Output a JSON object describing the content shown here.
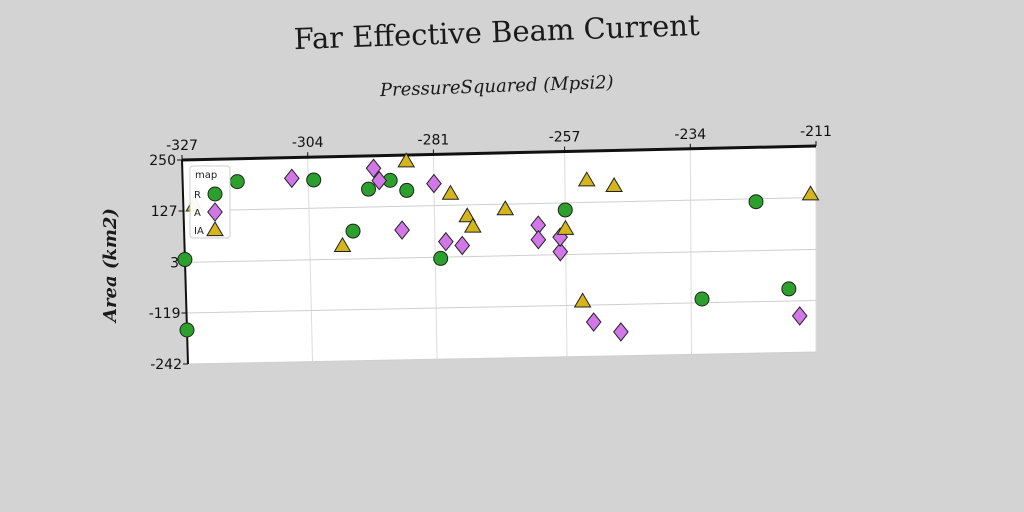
{
  "chart_data": {
    "type": "scatter",
    "title": "Far Effective Beam Current",
    "xlabel": "PressureSquared (Mpsi2)",
    "ylabel": "Area (km2)",
    "xlim": [
      -327,
      -211
    ],
    "ylim": [
      -242,
      250
    ],
    "x_ticks": [
      "-327",
      "-304",
      "-281",
      "-257",
      "-234",
      "-211"
    ],
    "y_ticks": [
      "250",
      "127",
      "3",
      "-119",
      "-242"
    ],
    "x_axis_position": "top",
    "grid": true,
    "legend": {
      "title": "map",
      "placement": "upper-left"
    },
    "series": [
      {
        "name": "R",
        "marker": "circle",
        "color": "#2ca02c",
        "points": [
          [
            -327,
            -160
          ],
          [
            -327,
            10
          ],
          [
            -317,
            195
          ],
          [
            -303,
            195
          ],
          [
            -296,
            70
          ],
          [
            -293,
            170
          ],
          [
            -289,
            190
          ],
          [
            -286,
            165
          ],
          [
            -280,
            0
          ],
          [
            -257,
            110
          ],
          [
            -232,
            -110
          ],
          [
            -222,
            120
          ],
          [
            -216,
            -90
          ]
        ]
      },
      {
        "name": "A",
        "marker": "diamond",
        "color": "#d277e8",
        "points": [
          [
            -307,
            200
          ],
          [
            -292,
            220
          ],
          [
            -291,
            190
          ],
          [
            -287,
            70
          ],
          [
            -281,
            180
          ],
          [
            -279,
            40
          ],
          [
            -276,
            30
          ],
          [
            -262,
            75
          ],
          [
            -262,
            40
          ],
          [
            -258,
            10
          ],
          [
            -258,
            45
          ],
          [
            -252,
            -160
          ],
          [
            -247,
            -185
          ],
          [
            -214,
            -155
          ]
        ]
      },
      {
        "name": "IA",
        "marker": "triangle",
        "color": "#d4b51c",
        "points": [
          [
            -325,
            140
          ],
          [
            -298,
            35
          ],
          [
            -286,
            235
          ],
          [
            -278,
            155
          ],
          [
            -275,
            100
          ],
          [
            -274,
            75
          ],
          [
            -268,
            115
          ],
          [
            -257,
            65
          ],
          [
            -254,
            -110
          ],
          [
            -253,
            180
          ],
          [
            -248,
            165
          ],
          [
            -212,
            135
          ]
        ]
      }
    ]
  }
}
